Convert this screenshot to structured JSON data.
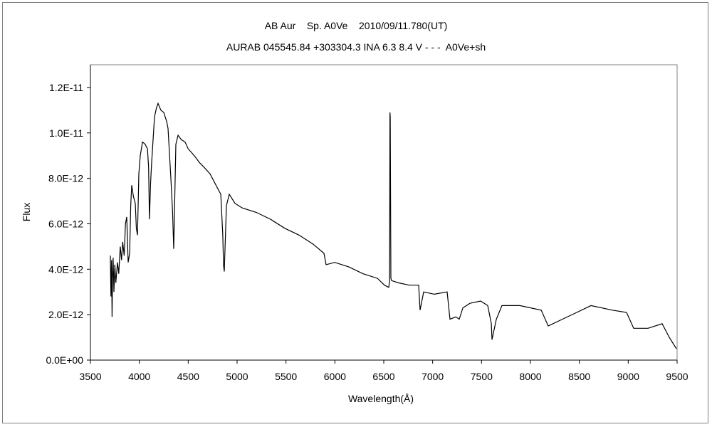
{
  "chart_data": {
    "type": "line",
    "title": "AB Aur    Sp. A0Ve    2010/09/11.780(UT)",
    "subtitle": "AURAB 045545.84 +303304.3 INA 6.3 8.4 V - - -  A0Ve+sh",
    "xlabel": "Wavelength(Å)",
    "ylabel": "Flux",
    "xlim": [
      3500,
      9500
    ],
    "ylim": [
      0,
      1.3e-11
    ],
    "xticks": [
      3500,
      4000,
      4500,
      5000,
      5500,
      6000,
      6500,
      7000,
      7500,
      8000,
      8500,
      9000,
      9500
    ],
    "xtick_labels": [
      "3500",
      "4000",
      "4500",
      "5000",
      "5500",
      "6000",
      "6500",
      "7000",
      "7500",
      "8000",
      "8500",
      "9000",
      "9500"
    ],
    "yticks": [
      0,
      2e-12,
      4e-12,
      6e-12,
      8e-12,
      1e-11,
      1.2e-11
    ],
    "ytick_labels": [
      "0.0E+00",
      "2.0E-12",
      "4.0E-12",
      "6.0E-12",
      "8.0E-12",
      "1.0E-11",
      "1.2E-11"
    ],
    "grid": false,
    "line_color": "#000000",
    "series": [
      {
        "x": [
          3704,
          3710,
          3716,
          3721,
          3726,
          3732,
          3740,
          3750,
          3760,
          3777,
          3790,
          3805,
          3818,
          3830,
          3845,
          3858,
          3871,
          3886,
          3901,
          3912,
          3922,
          3940,
          3959,
          3970,
          3981,
          3995,
          4010,
          4032,
          4060,
          4083,
          4095,
          4104,
          4115,
          4126,
          4155,
          4175,
          4192,
          4220,
          4250,
          4280,
          4294,
          4323,
          4340,
          4352,
          4374,
          4396,
          4430,
          4468,
          4500,
          4541,
          4580,
          4614,
          4660,
          4723,
          4760,
          4796,
          4833,
          4854,
          4861,
          4869,
          4891,
          4920,
          4978,
          5051,
          5197,
          5342,
          5488,
          5634,
          5779,
          5888,
          5910,
          5998,
          6143,
          6289,
          6435,
          6507,
          6551,
          6560,
          6563,
          6566,
          6573,
          6580,
          6653,
          6762,
          6857,
          6871,
          6908,
          7017,
          7148,
          7177,
          7236,
          7272,
          7309,
          7381,
          7491,
          7563,
          7600,
          7607,
          7651,
          7709,
          7891,
          8110,
          8182,
          8328,
          8474,
          8619,
          8838,
          8983,
          9056,
          9202,
          9347,
          9420,
          9493
        ],
        "y": [
          4.6e-12,
          2.8e-12,
          4.4e-12,
          1.9e-12,
          3.6e-12,
          4.5e-12,
          3e-12,
          4.2e-12,
          3.4e-12,
          4.3e-12,
          3.8e-12,
          5e-12,
          4.4e-12,
          5.2e-12,
          4.6e-12,
          6e-12,
          6.3e-12,
          4.3e-12,
          4.7e-12,
          6.8e-12,
          7.7e-12,
          7.2e-12,
          6.9e-12,
          5.8e-12,
          5.5e-12,
          8.2e-12,
          9e-12,
          9.6e-12,
          9.5e-12,
          9.3e-12,
          8.5e-12,
          6.2e-12,
          7.8e-12,
          8.7e-12,
          1.07e-11,
          1.11e-11,
          1.13e-11,
          1.1e-11,
          1.09e-11,
          1.05e-11,
          1.02e-11,
          8e-12,
          6.5e-12,
          4.9e-12,
          9.5e-12,
          9.9e-12,
          9.7e-12,
          9.6e-12,
          9.3e-12,
          9.1e-12,
          8.9e-12,
          8.7e-12,
          8.5e-12,
          8.2e-12,
          7.9e-12,
          7.6e-12,
          7.3e-12,
          5.5e-12,
          4.2e-12,
          3.9e-12,
          6.8e-12,
          7.3e-12,
          6.9e-12,
          6.7e-12,
          6.5e-12,
          6.2e-12,
          5.8e-12,
          5.5e-12,
          5.1e-12,
          4.7e-12,
          4.2e-12,
          4.3e-12,
          4.1e-12,
          3.8e-12,
          3.6e-12,
          3.3e-12,
          3.2e-12,
          3.5e-12,
          1.09e-11,
          1.07e-11,
          3.6e-12,
          3.5e-12,
          3.4e-12,
          3.3e-12,
          3.3e-12,
          2.2e-12,
          3e-12,
          2.9e-12,
          3e-12,
          1.8e-12,
          1.9e-12,
          1.8e-12,
          2.3e-12,
          2.5e-12,
          2.6e-12,
          2.4e-12,
          1.6e-12,
          9e-13,
          1.8e-12,
          2.4e-12,
          2.4e-12,
          2.2e-12,
          1.5e-12,
          1.8e-12,
          2.1e-12,
          2.4e-12,
          2.2e-12,
          2.1e-12,
          1.4e-12,
          1.4e-12,
          1.6e-12,
          1e-12,
          5e-13
        ]
      }
    ]
  }
}
